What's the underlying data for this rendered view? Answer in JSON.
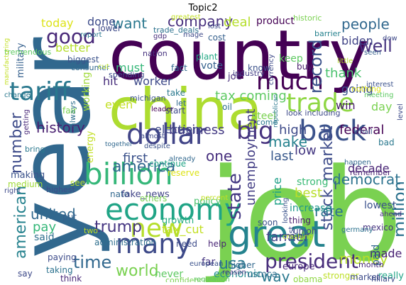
{
  "title": "Topic2",
  "words": [
    {
      "text": "job",
      "color": "#7ad151"
    },
    {
      "text": "year",
      "color": "#31688e"
    },
    {
      "text": "country",
      "color": "#440154"
    },
    {
      "text": "china",
      "color": "#addc30"
    },
    {
      "text": "great",
      "color": "#25838e"
    },
    {
      "text": "economy",
      "color": "#20a486"
    },
    {
      "text": "dollar",
      "color": "#414487"
    },
    {
      "text": "billion",
      "color": "#35b779"
    },
    {
      "text": "back",
      "color": "#3b528b"
    },
    {
      "text": "many",
      "color": "#3e4a89"
    },
    {
      "text": "trade",
      "color": "#8fd744"
    },
    {
      "text": "much",
      "color": "#440154"
    },
    {
      "text": "new",
      "color": "#b5de2b"
    },
    {
      "text": "tariff",
      "color": "#2a788e"
    },
    {
      "text": "big",
      "color": "#46327e"
    },
    {
      "text": "good",
      "color": "#482878"
    },
    {
      "text": "president",
      "color": "#472d7b"
    },
    {
      "text": "stock_market",
      "color": "#3e4c8a"
    },
    {
      "text": "state",
      "color": "#443983"
    },
    {
      "text": "million",
      "color": "#2c728e"
    },
    {
      "text": "record",
      "color": "#3b528b"
    },
    {
      "text": "america",
      "color": "#31688e"
    },
    {
      "text": "american",
      "color": "#26828e"
    },
    {
      "text": "number",
      "color": "#3e4c8a"
    },
    {
      "text": "time",
      "color": "#31688e"
    },
    {
      "text": "world",
      "color": "#7ad151"
    },
    {
      "text": "usa",
      "color": "#2a788e"
    },
    {
      "text": "unemployment",
      "color": "#433e85"
    },
    {
      "text": "company",
      "color": "#472f7d"
    },
    {
      "text": "history",
      "color": "#481f70"
    },
    {
      "text": "united",
      "color": "#31688e"
    },
    {
      "text": "tax coming",
      "color": "#5ec962"
    },
    {
      "text": "business",
      "color": "#443a83"
    },
    {
      "text": "democrat",
      "color": "#2c728e"
    },
    {
      "text": "people",
      "color": "#31688e"
    },
    {
      "text": "trump",
      "color": "#453581"
    },
    {
      "text": "money",
      "color": "#b5de2b"
    },
    {
      "text": "one",
      "color": "#472f7d"
    },
    {
      "text": "first",
      "color": "#3b528b"
    },
    {
      "text": "best",
      "color": "#b8de29"
    },
    {
      "text": "rate",
      "color": "#2c728e"
    },
    {
      "text": "want",
      "color": "#2a788e"
    },
    {
      "text": "federal",
      "color": "#440154"
    },
    {
      "text": "high",
      "color": "#3e4a89"
    },
    {
      "text": "last",
      "color": "#38588c"
    },
    {
      "text": "farmer",
      "color": "#414487"
    },
    {
      "text": "way",
      "color": "#2a788e"
    },
    {
      "text": "deal",
      "color": "#b5de2b"
    },
    {
      "text": "election",
      "color": "#3e4a89"
    },
    {
      "text": "well",
      "color": "#46327e"
    },
    {
      "text": "make",
      "color": "#26828e"
    },
    {
      "text": "low",
      "color": "#453882"
    },
    {
      "text": "price",
      "color": "#1fa088"
    },
    {
      "text": "tax_cut",
      "color": "#c2df23"
    },
    {
      "text": "thank",
      "color": "#4ac16d"
    },
    {
      "text": "biden",
      "color": "#414487"
    },
    {
      "text": "going",
      "color": "#3b528b"
    },
    {
      "text": "done",
      "color": "#3e4c8a"
    },
    {
      "text": "today",
      "color": "#dde318"
    },
    {
      "text": "better",
      "color": "#b5de2b"
    },
    {
      "text": "must",
      "color": "#35b779"
    },
    {
      "text": "worker",
      "color": "#3e4a89"
    },
    {
      "text": "hit",
      "color": "#472d7b"
    },
    {
      "text": "even",
      "color": "#c2df23"
    },
    {
      "text": "working",
      "color": "#a0da39"
    },
    {
      "text": "made",
      "color": "#482173"
    },
    {
      "text": "economic",
      "color": "#228c8d"
    },
    {
      "text": "said",
      "color": "#2e6f8e"
    },
    {
      "text": "never",
      "color": "#5ec962"
    },
    {
      "text": "far",
      "color": "#453581"
    },
    {
      "text": "mexico",
      "color": "#46337f"
    },
    {
      "text": "military",
      "color": "#35608d"
    },
    {
      "text": "win",
      "color": "#481b6d"
    },
    {
      "text": "day",
      "color": "#7ad151"
    },
    {
      "text": "pay",
      "color": "#35b779"
    },
    {
      "text": "energy",
      "color": "#c2df23"
    },
    {
      "text": "increase",
      "color": "#1f988b"
    },
    {
      "text": "thing",
      "color": "#481b6d"
    },
    {
      "text": "nato",
      "color": "#31688e"
    },
    {
      "text": "fake_news",
      "color": "#414487"
    },
    {
      "text": "administration",
      "color": "#2e6f8e"
    },
    {
      "text": "growth",
      "color": "#26ad81"
    },
    {
      "text": "policy",
      "color": "#4ac16d"
    },
    {
      "text": "lowest",
      "color": "#3b528b"
    },
    {
      "text": "decade",
      "color": "#482475"
    },
    {
      "text": "reserve",
      "color": "#dde318"
    },
    {
      "text": "continue",
      "color": "#20a486"
    },
    {
      "text": "strong",
      "color": "#3aba76"
    },
    {
      "text": "paid",
      "color": "#31688e"
    },
    {
      "text": "europe",
      "color": "#482878"
    },
    {
      "text": "usmca",
      "color": "#2e6f8e"
    },
    {
      "text": "obama",
      "color": "#8fd744"
    },
    {
      "text": "stronger",
      "color": "#bddf26"
    },
    {
      "text": "market",
      "color": "#3e4c8a"
    },
    {
      "text": "really",
      "color": "#20a486"
    },
    {
      "text": "biggest",
      "color": "#3b528b"
    },
    {
      "text": "lower",
      "color": "#3e4a89"
    },
    {
      "text": "product",
      "color": "#440154"
    },
    {
      "text": "nation",
      "color": "#46327e"
    },
    {
      "text": "fact",
      "color": "#31688e"
    },
    {
      "text": "vote",
      "color": "#35608d"
    },
    {
      "text": "plant",
      "color": "#22a884"
    },
    {
      "text": "joe",
      "color": "#472d7b"
    },
    {
      "text": "know",
      "color": "#3b528b"
    },
    {
      "text": "keep",
      "color": "#5ec962"
    },
    {
      "text": "steel",
      "color": "#7ad151"
    },
    {
      "text": "look including",
      "color": "#3e4a89"
    },
    {
      "text": "come",
      "color": "#2a788e"
    },
    {
      "text": "soon",
      "color": "#3b528b"
    },
    {
      "text": "remember",
      "color": "#481f70"
    },
    {
      "text": "nothing",
      "color": "#dde318"
    },
    {
      "text": "greatest",
      "color": "#c2df23"
    },
    {
      "text": "historic",
      "color": "#7ad151"
    },
    {
      "text": "barrier",
      "color": "#26828e"
    },
    {
      "text": "trade_deals",
      "color": "#2c728e"
    },
    {
      "text": "mage",
      "color": "#3e4a89"
    },
    {
      "text": "cost",
      "color": "#35608d"
    },
    {
      "text": "lost",
      "color": "#3e4c8a"
    },
    {
      "text": "gdp",
      "color": "#472d7b"
    },
    {
      "text": "report",
      "color": "#2a788e"
    },
    {
      "text": "consumer",
      "color": "#31688e"
    },
    {
      "text": "cut",
      "color": "#b5de2b"
    },
    {
      "text": "spending",
      "color": "#3e4a89"
    },
    {
      "text": "industry",
      "color": "#433e85"
    },
    {
      "text": "buy",
      "color": "#481b6d"
    },
    {
      "text": "taking",
      "color": "#2c728e"
    },
    {
      "text": "think",
      "color": "#482878"
    },
    {
      "text": "say",
      "color": "#3e4a89"
    },
    {
      "text": "tremendous",
      "color": "#5ec962"
    },
    {
      "text": "making",
      "color": "#3b528b"
    },
    {
      "text": "medium",
      "color": "#a0da39"
    },
    {
      "text": "always",
      "color": "#2e6f8e"
    },
    {
      "text": "highest",
      "color": "#3e4c8a"
    },
    {
      "text": "take",
      "color": "#2a788e"
    },
    {
      "text": "michigan",
      "color": "#3b528b"
    },
    {
      "text": "leader",
      "color": "#440154"
    },
    {
      "text": "start",
      "color": "#3e4a89"
    },
    {
      "text": "let",
      "color": "#31688e"
    },
    {
      "text": "fair",
      "color": "#7ad151"
    },
    {
      "text": "put",
      "color": "#35608d"
    },
    {
      "text": "two",
      "color": "#c2df23"
    },
    {
      "text": "need",
      "color": "#3e4c8a"
    },
    {
      "text": "help",
      "color": "#482475"
    },
    {
      "text": "higher",
      "color": "#31688e"
    },
    {
      "text": "reason",
      "color": "#443983"
    },
    {
      "text": "european",
      "color": "#3b528b"
    },
    {
      "text": "confidence",
      "color": "#7ad151"
    },
    {
      "text": "hillary",
      "color": "#3e4a89"
    },
    {
      "text": "ahead",
      "color": "#46337f"
    },
    {
      "text": "germany",
      "color": "#2c728e"
    },
    {
      "text": "union",
      "color": "#3e4a89"
    },
    {
      "text": "month",
      "color": "#482878"
    },
    {
      "text": "happen",
      "color": "#31688e"
    },
    {
      "text": "interest",
      "color": "#3b528b"
    },
    {
      "text": "meeting",
      "color": "#5ec962"
    },
    {
      "text": "level",
      "color": "#3e4c8a"
    },
    {
      "text": "bad",
      "color": "#2a788e"
    },
    {
      "text": "seen",
      "color": "#35608d"
    },
    {
      "text": "little",
      "color": "#b5de2b"
    },
    {
      "text": "dow",
      "color": "#3e4a89"
    },
    {
      "text": "manufacturing",
      "color": "#c2df23"
    },
    {
      "text": "change",
      "color": "#2a788e"
    },
    {
      "text": "almost",
      "color": "#3e4a89"
    },
    {
      "text": "despite",
      "color": "#3b528b"
    },
    {
      "text": "already",
      "color": "#31688e"
    },
    {
      "text": "oil",
      "color": "#2e6f8e"
    },
    {
      "text": "others",
      "color": "#7ad151"
    },
    {
      "text": "percent",
      "color": "#c2df23"
    },
    {
      "text": "currency",
      "color": "#3e4a89"
    },
    {
      "text": "small",
      "color": "#3b528b"
    },
    {
      "text": "bring",
      "color": "#2a788e"
    },
    {
      "text": "getting",
      "color": "#482878"
    },
    {
      "text": "paying",
      "color": "#3e4c8a"
    },
    {
      "text": "see",
      "color": "#b5de2b"
    },
    {
      "text": "right",
      "color": "#3e4a89"
    },
    {
      "text": "together",
      "color": "#31688e"
    },
    {
      "text": "regulation",
      "color": "#5ec962"
    },
    {
      "text": "republican",
      "color": "#2a788e"
    },
    {
      "text": "looking",
      "color": "#3b528b"
    },
    {
      "text": "fast",
      "color": "#3e4a89"
    },
    {
      "text": "crashing",
      "color": "#c2df23"
    }
  ]
}
